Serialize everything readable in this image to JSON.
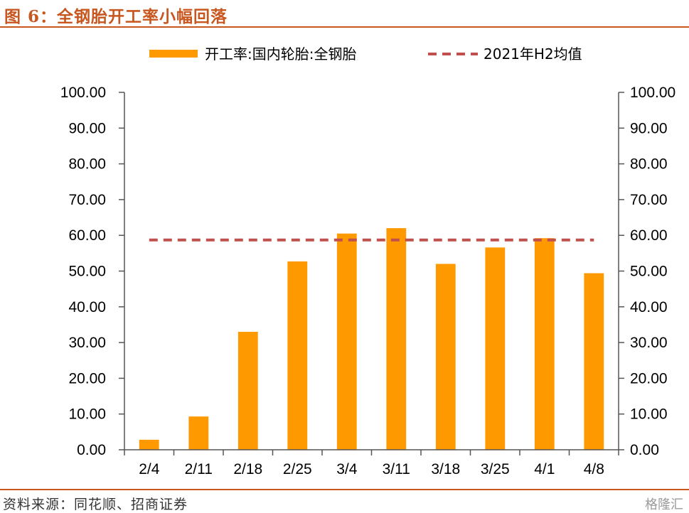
{
  "header": {
    "title": "图 6：全钢胎开工率小幅回落"
  },
  "footer": {
    "source": "资料来源：同花顺、招商证券",
    "watermark": "格隆汇"
  },
  "colors": {
    "bar": "#ff9900",
    "avg_line": "#c0504d",
    "accent": "#c8561f"
  },
  "chart_data": {
    "type": "bar",
    "categories": [
      "2/4",
      "2/11",
      "2/18",
      "2/25",
      "3/4",
      "3/11",
      "3/18",
      "3/25",
      "4/1",
      "4/8"
    ],
    "series": [
      {
        "name": "开工率:国内轮胎:全钢胎",
        "type": "bar",
        "values": [
          2.8,
          9.3,
          33.0,
          52.7,
          60.5,
          62.0,
          52.0,
          56.6,
          59.2,
          49.4
        ]
      },
      {
        "name": "2021年H2均值",
        "type": "line",
        "style": "dashed",
        "values": [
          58.7,
          58.7,
          58.7,
          58.7,
          58.7,
          58.7,
          58.7,
          58.7,
          58.7,
          58.7
        ]
      }
    ],
    "yticks": [
      "0.00",
      "10.00",
      "20.00",
      "30.00",
      "40.00",
      "50.00",
      "60.00",
      "70.00",
      "80.00",
      "90.00",
      "100.00"
    ],
    "ylim": [
      0,
      100
    ],
    "y2lim": [
      0,
      100
    ],
    "title": "",
    "xlabel": "",
    "ylabel": "",
    "grid": false,
    "legend": "top"
  }
}
